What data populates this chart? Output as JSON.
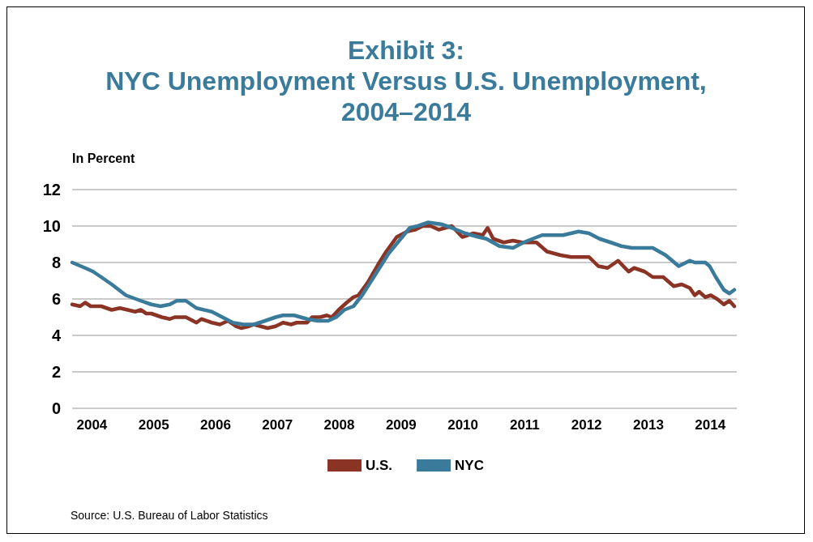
{
  "chart_data": {
    "type": "line",
    "title": "Exhibit 3:\nNYC Unemployment Versus U.S. Unemployment,\n2004–2014",
    "ylabel": "In Percent",
    "xlim": [
      2004,
      2014.75
    ],
    "xticks": [
      {
        "value": 2004.32,
        "label": "2004"
      },
      {
        "value": 2005.32,
        "label": "2005"
      },
      {
        "value": 2006.32,
        "label": "2006"
      },
      {
        "value": 2007.32,
        "label": "2007"
      },
      {
        "value": 2008.32,
        "label": "2008"
      },
      {
        "value": 2009.32,
        "label": "2009"
      },
      {
        "value": 2010.32,
        "label": "2010"
      },
      {
        "value": 2011.32,
        "label": "2011"
      },
      {
        "value": 2012.32,
        "label": "2012"
      },
      {
        "value": 2013.32,
        "label": "2013"
      },
      {
        "value": 2014.32,
        "label": "2014"
      }
    ],
    "ylim": [
      0,
      12
    ],
    "yticks": [
      0,
      2,
      4,
      6,
      8,
      10,
      12
    ],
    "grid": "y",
    "legend": "bottom",
    "marker": "none",
    "line_style": "solid",
    "series": [
      {
        "name": "U.S.",
        "color": "#8b3324",
        "x": [
          2004.0,
          2004.13,
          2004.21,
          2004.3,
          2004.47,
          2004.64,
          2004.77,
          2004.9,
          2005.02,
          2005.11,
          2005.2,
          2005.28,
          2005.45,
          2005.58,
          2005.66,
          2005.84,
          2006.01,
          2006.09,
          2006.26,
          2006.39,
          2006.52,
          2006.65,
          2006.73,
          2006.86,
          2006.94,
          2007.16,
          2007.29,
          2007.41,
          2007.54,
          2007.63,
          2007.8,
          2007.88,
          2008.01,
          2008.12,
          2008.2,
          2008.31,
          2008.44,
          2008.55,
          2008.63,
          2008.78,
          2008.95,
          2009.08,
          2009.25,
          2009.42,
          2009.55,
          2009.67,
          2009.8,
          2009.93,
          2010.14,
          2010.31,
          2010.49,
          2010.64,
          2010.72,
          2010.81,
          2010.98,
          2011.13,
          2011.28,
          2011.51,
          2011.68,
          2011.9,
          2012.07,
          2012.36,
          2012.51,
          2012.66,
          2012.83,
          2013.0,
          2013.09,
          2013.26,
          2013.39,
          2013.56,
          2013.73,
          2013.86,
          2013.99,
          2014.07,
          2014.14,
          2014.24,
          2014.33,
          2014.43,
          2014.54,
          2014.63,
          2014.71
        ],
        "values": [
          5.7,
          5.6,
          5.8,
          5.6,
          5.6,
          5.4,
          5.5,
          5.4,
          5.3,
          5.4,
          5.2,
          5.2,
          5.0,
          4.9,
          5.0,
          5.0,
          4.7,
          4.9,
          4.7,
          4.6,
          4.8,
          4.5,
          4.4,
          4.5,
          4.6,
          4.4,
          4.5,
          4.7,
          4.6,
          4.7,
          4.7,
          5.0,
          5.0,
          5.1,
          5.0,
          5.4,
          5.8,
          6.1,
          6.2,
          6.9,
          7.9,
          8.6,
          9.4,
          9.7,
          9.8,
          10.0,
          10.0,
          9.8,
          10.0,
          9.4,
          9.6,
          9.5,
          9.9,
          9.3,
          9.1,
          9.2,
          9.1,
          9.1,
          8.6,
          8.4,
          8.3,
          8.3,
          7.8,
          7.7,
          8.1,
          7.5,
          7.7,
          7.5,
          7.2,
          7.2,
          6.7,
          6.8,
          6.6,
          6.2,
          6.4,
          6.1,
          6.2,
          6.0,
          5.7,
          5.9,
          5.6
        ]
      },
      {
        "name": "NYC",
        "color": "#3a7b9b",
        "x": [
          2004.0,
          2004.21,
          2004.34,
          2004.47,
          2004.64,
          2004.87,
          2005.11,
          2005.28,
          2005.43,
          2005.58,
          2005.69,
          2005.84,
          2006.01,
          2006.26,
          2006.43,
          2006.6,
          2006.77,
          2006.94,
          2007.12,
          2007.29,
          2007.41,
          2007.59,
          2007.8,
          2007.97,
          2008.14,
          2008.27,
          2008.4,
          2008.55,
          2008.69,
          2008.84,
          2008.99,
          2009.12,
          2009.29,
          2009.46,
          2009.59,
          2009.76,
          2009.97,
          2010.14,
          2010.36,
          2010.57,
          2010.7,
          2010.91,
          2011.13,
          2011.3,
          2011.6,
          2011.94,
          2012.19,
          2012.36,
          2012.53,
          2012.71,
          2012.88,
          2013.05,
          2013.39,
          2013.6,
          2013.81,
          2013.99,
          2014.07,
          2014.24,
          2014.31,
          2014.41,
          2014.54,
          2014.63,
          2014.71
        ],
        "values": [
          8.0,
          7.7,
          7.5,
          7.2,
          6.8,
          6.2,
          5.9,
          5.7,
          5.6,
          5.7,
          5.9,
          5.9,
          5.5,
          5.3,
          5.0,
          4.7,
          4.6,
          4.6,
          4.8,
          5.0,
          5.1,
          5.1,
          4.9,
          4.8,
          4.8,
          5.0,
          5.4,
          5.6,
          6.2,
          7.0,
          7.8,
          8.5,
          9.2,
          9.9,
          10.0,
          10.2,
          10.1,
          9.9,
          9.6,
          9.4,
          9.3,
          8.9,
          8.8,
          9.1,
          9.5,
          9.5,
          9.7,
          9.6,
          9.3,
          9.1,
          8.9,
          8.8,
          8.8,
          8.4,
          7.8,
          8.1,
          8.0,
          8.0,
          7.8,
          7.2,
          6.5,
          6.3,
          6.5
        ]
      }
    ],
    "annotations": [
      "Source: U.S. Bureau of Labor Statistics"
    ]
  }
}
